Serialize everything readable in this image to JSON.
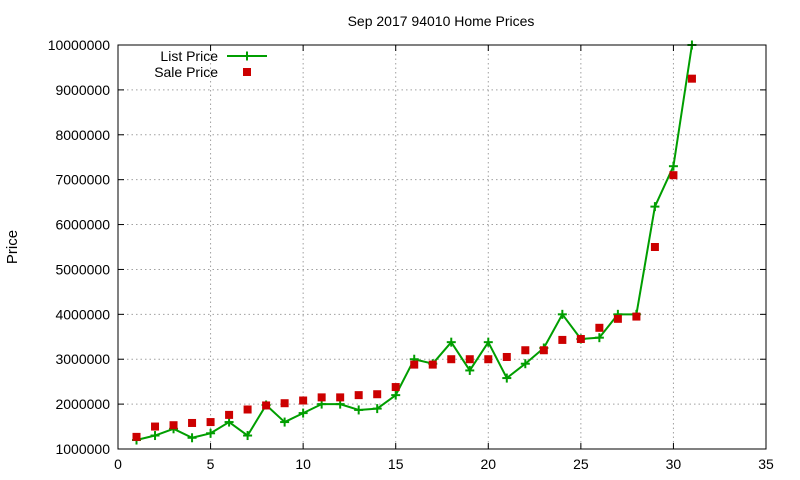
{
  "chart_data": {
    "type": "line",
    "title": "Sep 2017 94010 Home Prices",
    "xlabel": "",
    "ylabel": "Price",
    "xlim": [
      0,
      35
    ],
    "ylim": [
      1000000,
      10000000
    ],
    "xticks": [
      0,
      5,
      10,
      15,
      20,
      25,
      30,
      35
    ],
    "yticks": [
      1000000,
      2000000,
      3000000,
      4000000,
      5000000,
      6000000,
      7000000,
      8000000,
      9000000,
      10000000
    ],
    "grid": true,
    "legend_position": "top-left",
    "series": [
      {
        "name": "List Price",
        "style": "line-with-plus-markers",
        "color": "#009e00",
        "x": [
          1,
          2,
          3,
          4,
          5,
          6,
          7,
          8,
          9,
          10,
          11,
          12,
          13,
          14,
          15,
          16,
          17,
          18,
          19,
          20,
          21,
          22,
          23,
          24,
          25,
          26,
          27,
          28,
          29,
          30,
          31
        ],
        "y": [
          1200000,
          1300000,
          1450000,
          1250000,
          1350000,
          1600000,
          1300000,
          1980000,
          1600000,
          1800000,
          2000000,
          2000000,
          1870000,
          1900000,
          2200000,
          3000000,
          2900000,
          3380000,
          2750000,
          3380000,
          2580000,
          2900000,
          3250000,
          4000000,
          3450000,
          3480000,
          4000000,
          4000000,
          6400000,
          7300000,
          10000000
        ]
      },
      {
        "name": "Sale Price",
        "style": "square-markers",
        "color": "#cc0000",
        "x": [
          1,
          2,
          3,
          4,
          5,
          6,
          7,
          8,
          9,
          10,
          11,
          12,
          13,
          14,
          15,
          16,
          17,
          18,
          19,
          20,
          21,
          22,
          23,
          24,
          25,
          26,
          27,
          28,
          29,
          30,
          31
        ],
        "y": [
          1270000,
          1500000,
          1530000,
          1580000,
          1600000,
          1760000,
          1880000,
          1970000,
          2020000,
          2080000,
          2150000,
          2150000,
          2200000,
          2220000,
          2380000,
          2880000,
          2880000,
          3000000,
          3000000,
          3000000,
          3050000,
          3200000,
          3200000,
          3430000,
          3450000,
          3700000,
          3900000,
          3950000,
          5500000,
          7100000,
          9250000
        ]
      }
    ]
  }
}
